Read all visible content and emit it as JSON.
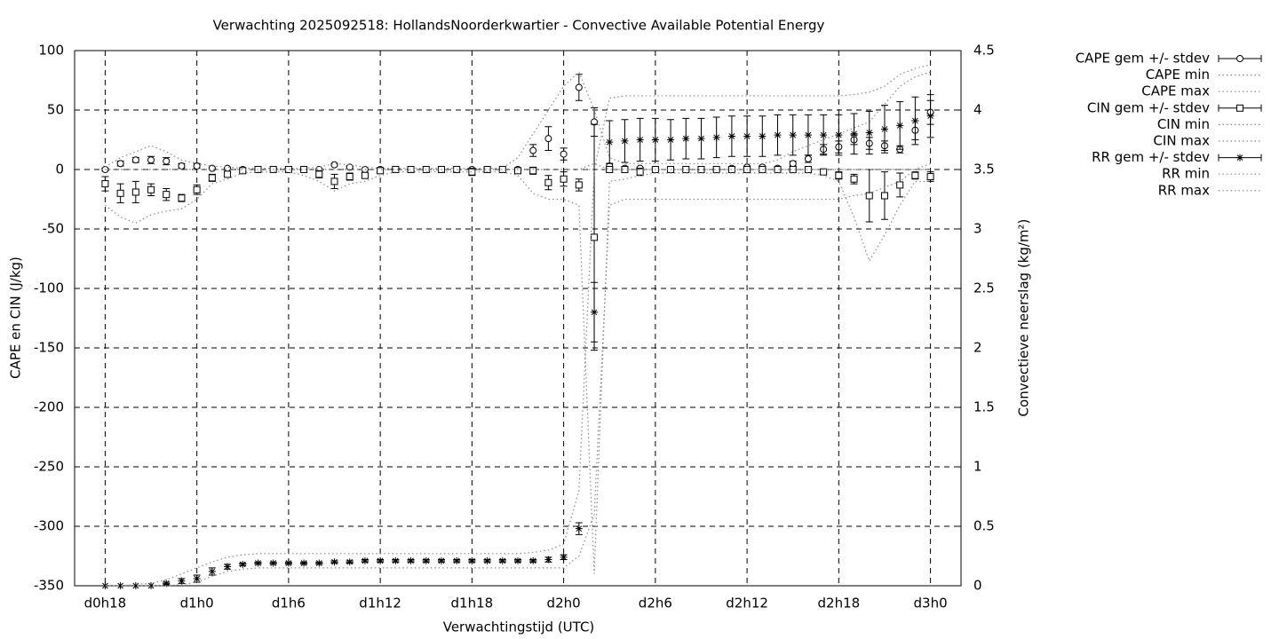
{
  "chart_data": {
    "type": "errorbar-line",
    "title": "Verwachting 2025092518: HollandsNoorderkwartier - Convective Available Potential Energy",
    "xlabel": "Verwachtingstijd (UTC)",
    "ylabel": "CAPE en CIN (J/kg)",
    "y2label": "Convectieve neerslag (kg/m²)",
    "x": [
      18,
      19,
      20,
      21,
      22,
      23,
      24,
      25,
      26,
      27,
      28,
      29,
      30,
      31,
      32,
      33,
      34,
      35,
      36,
      37,
      38,
      39,
      40,
      41,
      42,
      43,
      44,
      45,
      46,
      47,
      48,
      49,
      50,
      51,
      52,
      53,
      54,
      55,
      56,
      57,
      58,
      59,
      60,
      61,
      62,
      63,
      64,
      65,
      66,
      67,
      68,
      69,
      70,
      71,
      72
    ],
    "xlim": [
      16,
      74
    ],
    "xticks": [
      {
        "value": 18,
        "label": "d0h18"
      },
      {
        "value": 24,
        "label": "d1h0"
      },
      {
        "value": 30,
        "label": "d1h6"
      },
      {
        "value": 36,
        "label": "d1h12"
      },
      {
        "value": 42,
        "label": "d1h18"
      },
      {
        "value": 48,
        "label": "d2h0"
      },
      {
        "value": 54,
        "label": "d2h6"
      },
      {
        "value": 60,
        "label": "d2h12"
      },
      {
        "value": 66,
        "label": "d2h18"
      },
      {
        "value": 72,
        "label": "d3h0"
      }
    ],
    "ylim": [
      -350,
      100
    ],
    "yticks": [
      -350,
      -300,
      -250,
      -200,
      -150,
      -100,
      -50,
      0,
      50,
      100
    ],
    "y2lim": [
      0,
      4.5
    ],
    "y2ticks": [
      0,
      0.5,
      1,
      1.5,
      2,
      2.5,
      3,
      3.5,
      4,
      4.5
    ],
    "grid": true,
    "legend": "outside-right",
    "series": [
      {
        "name": "CAPE gem +/- stdev",
        "color": "#000000",
        "style": "errorbar",
        "marker": "circle",
        "values": [
          0,
          5,
          8,
          8,
          7,
          3,
          3,
          1,
          1,
          0,
          0,
          0,
          0,
          0,
          0,
          4,
          2,
          0,
          0,
          0,
          0,
          0,
          0,
          0,
          0,
          0,
          0,
          0,
          16,
          26,
          13,
          69,
          40,
          3,
          1,
          1,
          0,
          0,
          0,
          0,
          0,
          1,
          2,
          2,
          1,
          5,
          9,
          17,
          19,
          25,
          22,
          20,
          17,
          33,
          48
        ],
        "errors": [
          1,
          2,
          2,
          3,
          3,
          2,
          2,
          1,
          1,
          0,
          0,
          0,
          0,
          0,
          0,
          1,
          1,
          0,
          0,
          0,
          0,
          0,
          0,
          0,
          0,
          0,
          0,
          0,
          5,
          10,
          5,
          11,
          12,
          2,
          1,
          1,
          0,
          0,
          0,
          0,
          0,
          1,
          1,
          1,
          1,
          2,
          3,
          4,
          5,
          4,
          5,
          4,
          3,
          8,
          10
        ]
      },
      {
        "name": "CAPE min",
        "color": "#888888",
        "style": "dotted",
        "values": [
          0,
          0,
          0,
          0,
          0,
          0,
          0,
          0,
          0,
          0,
          0,
          0,
          0,
          0,
          0,
          0,
          0,
          0,
          0,
          0,
          0,
          0,
          0,
          0,
          0,
          0,
          0,
          0,
          0,
          0,
          0,
          0,
          0,
          0,
          0,
          0,
          0,
          0,
          0,
          0,
          0,
          0,
          0,
          0,
          0,
          0,
          0,
          0,
          0,
          0,
          0,
          0,
          0,
          0,
          0
        ]
      },
      {
        "name": "CAPE max",
        "color": "#888888",
        "style": "dotted",
        "values": [
          2,
          10,
          15,
          20,
          15,
          8,
          5,
          3,
          2,
          1,
          1,
          1,
          1,
          1,
          2,
          5,
          4,
          2,
          1,
          1,
          1,
          1,
          1,
          1,
          1,
          1,
          1,
          10,
          30,
          50,
          70,
          82,
          50,
          10,
          5,
          5,
          5,
          5,
          5,
          5,
          5,
          5,
          5,
          5,
          8,
          15,
          20,
          25,
          30,
          35,
          40,
          55,
          70,
          78,
          82
        ]
      },
      {
        "name": "CIN gem +/- stdev",
        "color": "#000000",
        "style": "errorbar",
        "marker": "square",
        "values": [
          -12,
          -20,
          -19,
          -17,
          -21,
          -24,
          -17,
          -7,
          -4,
          -1,
          0,
          0,
          0,
          0,
          -4,
          -10,
          -6,
          -5,
          -1,
          0,
          0,
          0,
          0,
          0,
          -2,
          0,
          0,
          -1,
          -1,
          -11,
          -8,
          -13,
          -57,
          0,
          0,
          -2,
          0,
          0,
          0,
          0,
          0,
          0,
          0,
          0,
          0,
          0,
          0,
          -2,
          -5,
          -8,
          -22,
          -22,
          -13,
          -5,
          -6
        ],
        "errors": [
          6,
          8,
          9,
          5,
          5,
          3,
          4,
          3,
          2,
          1,
          0,
          0,
          0,
          0,
          3,
          6,
          3,
          2,
          2,
          0,
          0,
          0,
          0,
          0,
          3,
          0,
          0,
          1,
          3,
          6,
          6,
          5,
          95,
          2,
          2,
          3,
          1,
          1,
          1,
          1,
          1,
          1,
          1,
          1,
          1,
          1,
          1,
          2,
          3,
          4,
          22,
          20,
          10,
          3,
          4
        ]
      },
      {
        "name": "CIN min",
        "color": "#888888",
        "style": "dotted",
        "values": [
          -30,
          -40,
          -45,
          -38,
          -35,
          -33,
          -25,
          -12,
          -8,
          -3,
          -2,
          -2,
          -2,
          -5,
          -10,
          -18,
          -12,
          -10,
          -5,
          -2,
          -2,
          -2,
          -2,
          -2,
          -2,
          -2,
          -2,
          -5,
          -20,
          -25,
          -25,
          -30,
          -340,
          -10,
          -8,
          -5,
          -3,
          -3,
          -3,
          -3,
          -3,
          -3,
          -3,
          -3,
          -3,
          -3,
          -3,
          -5,
          -10,
          -40,
          -77,
          -55,
          -30,
          -10,
          -10
        ]
      },
      {
        "name": "CIN max",
        "color": "#888888",
        "style": "dotted",
        "values": [
          0,
          0,
          0,
          0,
          0,
          0,
          0,
          0,
          0,
          0,
          0,
          0,
          0,
          0,
          0,
          0,
          0,
          0,
          0,
          0,
          0,
          0,
          0,
          0,
          0,
          0,
          0,
          0,
          0,
          0,
          0,
          0,
          5,
          0,
          0,
          0,
          0,
          0,
          0,
          0,
          0,
          0,
          0,
          0,
          0,
          0,
          0,
          0,
          0,
          0,
          0,
          0,
          0,
          0,
          0
        ]
      },
      {
        "name": "RR gem +/- stdev",
        "color": "#000000",
        "style": "errorbar",
        "marker": "star",
        "axis": "y2",
        "values": [
          0,
          0,
          0,
          0,
          0.02,
          0.04,
          0.06,
          0.12,
          0.16,
          0.18,
          0.19,
          0.19,
          0.19,
          0.19,
          0.19,
          0.2,
          0.2,
          0.21,
          0.21,
          0.21,
          0.21,
          0.21,
          0.21,
          0.21,
          0.21,
          0.21,
          0.21,
          0.21,
          0.21,
          0.22,
          0.24,
          0.48,
          2.3,
          3.73,
          3.74,
          3.75,
          3.75,
          3.75,
          3.76,
          3.76,
          3.77,
          3.78,
          3.78,
          3.78,
          3.79,
          3.79,
          3.79,
          3.79,
          3.79,
          3.8,
          3.81,
          3.84,
          3.87,
          3.91,
          3.95
        ],
        "errors": [
          0,
          0,
          0,
          0,
          0.01,
          0.02,
          0.03,
          0.03,
          0.02,
          0.01,
          0.01,
          0.01,
          0.01,
          0.01,
          0.01,
          0.01,
          0.01,
          0.01,
          0.01,
          0.01,
          0.01,
          0.01,
          0.01,
          0.01,
          0.01,
          0.01,
          0.01,
          0.01,
          0.01,
          0.02,
          0.02,
          0.05,
          0.25,
          0.18,
          0.18,
          0.18,
          0.18,
          0.17,
          0.17,
          0.17,
          0.17,
          0.17,
          0.17,
          0.17,
          0.17,
          0.17,
          0.17,
          0.17,
          0.17,
          0.17,
          0.18,
          0.2,
          0.2,
          0.2,
          0.18
        ]
      },
      {
        "name": "RR min",
        "color": "#888888",
        "style": "dotted",
        "axis": "y2",
        "values": [
          0,
          0,
          0,
          0,
          0,
          0.01,
          0.03,
          0.08,
          0.12,
          0.14,
          0.15,
          0.15,
          0.15,
          0.15,
          0.15,
          0.15,
          0.15,
          0.15,
          0.15,
          0.15,
          0.15,
          0.15,
          0.15,
          0.15,
          0.15,
          0.15,
          0.15,
          0.15,
          0.15,
          0.15,
          0.15,
          0.25,
          0.6,
          3.2,
          3.25,
          3.25,
          3.25,
          3.25,
          3.25,
          3.25,
          3.25,
          3.25,
          3.25,
          3.25,
          3.25,
          3.25,
          3.25,
          3.25,
          3.25,
          3.28,
          3.3,
          3.35,
          3.4,
          3.5,
          3.55
        ]
      },
      {
        "name": "RR max",
        "color": "#888888",
        "style": "dotted",
        "axis": "y2",
        "values": [
          0,
          0,
          0.01,
          0.02,
          0.05,
          0.1,
          0.15,
          0.2,
          0.24,
          0.26,
          0.27,
          0.27,
          0.27,
          0.27,
          0.27,
          0.27,
          0.27,
          0.27,
          0.27,
          0.27,
          0.27,
          0.27,
          0.27,
          0.27,
          0.27,
          0.27,
          0.27,
          0.27,
          0.28,
          0.3,
          0.35,
          0.8,
          3.5,
          4.1,
          4.12,
          4.12,
          4.12,
          4.12,
          4.12,
          4.12,
          4.12,
          4.12,
          4.12,
          4.12,
          4.12,
          4.12,
          4.12,
          4.12,
          4.12,
          4.13,
          4.15,
          4.2,
          4.3,
          4.35,
          4.38
        ]
      }
    ]
  }
}
